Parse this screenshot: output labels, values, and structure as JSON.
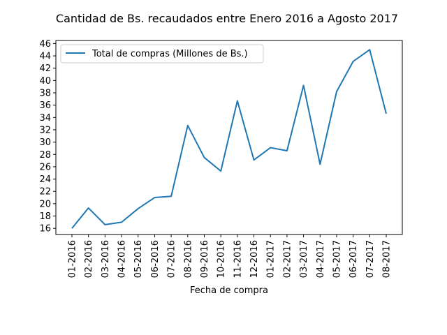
{
  "chart_data": {
    "type": "line",
    "title": "Cantidad de Bs. recaudados entre Enero 2016 a Agosto 2017",
    "xlabel": "Fecha de compra",
    "ylabel": "",
    "categories": [
      "01-2016",
      "02-2016",
      "03-2016",
      "04-2016",
      "05-2016",
      "06-2016",
      "07-2016",
      "08-2016",
      "09-2016",
      "10-2016",
      "11-2016",
      "12-2016",
      "01-2017",
      "02-2017",
      "03-2017",
      "04-2017",
      "05-2017",
      "06-2017",
      "07-2017",
      "08-2017"
    ],
    "series": [
      {
        "name": "Total de compras (Millones de Bs.)",
        "values": [
          16.0,
          19.3,
          16.6,
          17.0,
          19.2,
          21.0,
          21.2,
          32.7,
          27.5,
          25.3,
          36.7,
          27.1,
          29.1,
          28.6,
          39.2,
          26.4,
          38.2,
          43.1,
          45.0,
          34.6
        ]
      }
    ],
    "ylim": [
      15,
      46.5
    ],
    "yticks": [
      16,
      18,
      20,
      22,
      24,
      26,
      28,
      30,
      32,
      34,
      36,
      38,
      40,
      42,
      44,
      46
    ],
    "grid": false,
    "legend_position": "upper-left",
    "colors": {
      "series": "#1f77b4"
    }
  }
}
